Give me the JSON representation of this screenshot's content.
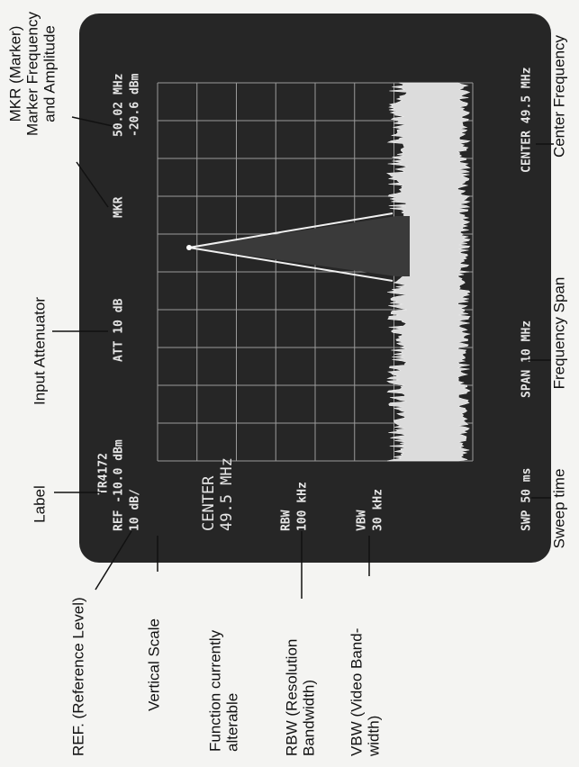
{
  "screen": {
    "model": "TR4172",
    "ref": "REF -10.0 dBm",
    "scale": "10 dB/",
    "att": "ATT 10 dB",
    "mkr": "MKR",
    "mkr_freq": "50.02 MHz",
    "mkr_amp": "-20.6 dBm",
    "function_name": "CENTER",
    "function_value": "49.5 MHz",
    "rbw_name": "RBW",
    "rbw_value": "100 kHz",
    "vbw_name": "VBW",
    "vbw_value": "30 kHz",
    "sweep": "SWP 50 ms",
    "span": "SPAN 10 MHz",
    "center": "CENTER 49.5 MHz"
  },
  "annotations": {
    "label": "Label",
    "input_attenuator": "Input Attenuator",
    "marker": [
      "MKR (Marker)",
      "Marker Frequency",
      "and Amplitude"
    ],
    "center_frequency": "Center Frequency",
    "frequency_span": "Frequency Span",
    "sweep_time": "Sweep time",
    "reference_level": "REF. (Reference Level)",
    "vertical_scale": "Vertical Scale",
    "function": [
      "Function currently",
      "alterable"
    ],
    "rbw": [
      "RBW (Resolution",
      "Bandwidth)"
    ],
    "vbw": [
      "VBW (Video Band-",
      "width)"
    ]
  }
}
